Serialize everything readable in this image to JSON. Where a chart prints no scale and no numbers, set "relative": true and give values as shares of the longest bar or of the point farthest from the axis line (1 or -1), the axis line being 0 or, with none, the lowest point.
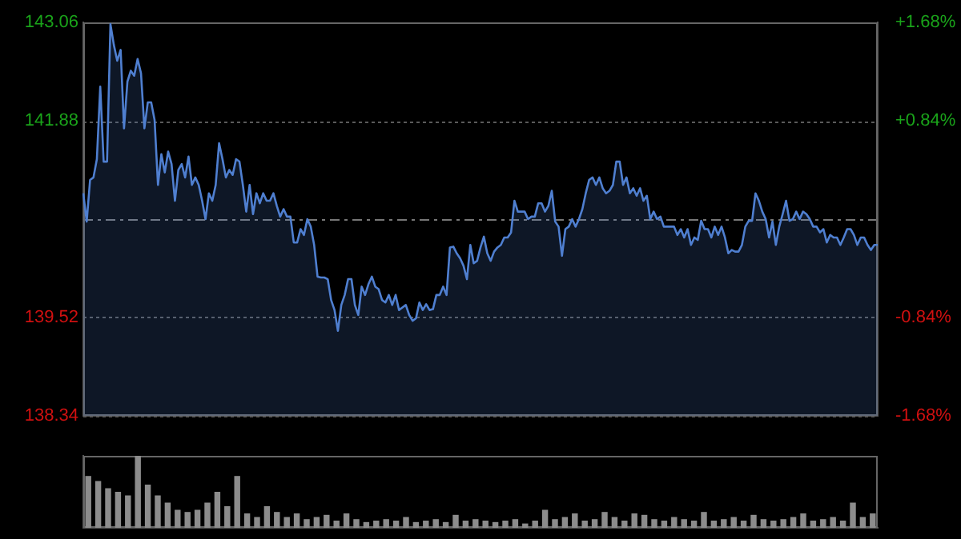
{
  "chart_data": [
    {
      "type": "area",
      "tick_labels": "y",
      "grid": "y",
      "legend": false,
      "categories": [
        null,
        null,
        null,
        null,
        null,
        null,
        null,
        null,
        null,
        null,
        null,
        null,
        null,
        null,
        null,
        null,
        null,
        null,
        null,
        null,
        null,
        null,
        null,
        null,
        null,
        null,
        null,
        null,
        null,
        null,
        null,
        null,
        null,
        null,
        null,
        null,
        null,
        null,
        null,
        null,
        null,
        null,
        null,
        null,
        null,
        null,
        null,
        null,
        null,
        null,
        null,
        null,
        null,
        null,
        null,
        null,
        null,
        null,
        null,
        null,
        null,
        null,
        null,
        null,
        null,
        null,
        null,
        null,
        null,
        null,
        null,
        null,
        null,
        null,
        null,
        null,
        null,
        null,
        null,
        null,
        null,
        null,
        null,
        null,
        null,
        null,
        null,
        null,
        null,
        null,
        null,
        null,
        null,
        null,
        null,
        null,
        null,
        null,
        null,
        null,
        null,
        null,
        null,
        null,
        null,
        null,
        null,
        null,
        null,
        null,
        null,
        null,
        null,
        null,
        null,
        null,
        null,
        null,
        null,
        null,
        null,
        null,
        null,
        null,
        null,
        null,
        null,
        null,
        null,
        null,
        null,
        null,
        null,
        null,
        null,
        null,
        null,
        null,
        null,
        null,
        null,
        null,
        null,
        null,
        null,
        null,
        null,
        null,
        null,
        null,
        null,
        null,
        null,
        null,
        null,
        null,
        null,
        null,
        null,
        null,
        null,
        null,
        null,
        null,
        null,
        null,
        null,
        null,
        null,
        null,
        null,
        null,
        null,
        null,
        null,
        null,
        null,
        null,
        null,
        null,
        null,
        null,
        null,
        null,
        null,
        null,
        null,
        null,
        null,
        null,
        null,
        null,
        null,
        null,
        null,
        null,
        null,
        null,
        null,
        null,
        null,
        null,
        null,
        null,
        null,
        null,
        null,
        null,
        null,
        null,
        null,
        null,
        null,
        null,
        null,
        null,
        null,
        null,
        null,
        null,
        null,
        null,
        null,
        null,
        null,
        null,
        null,
        null,
        null,
        null,
        null,
        null,
        null,
        null,
        null
      ],
      "series": [
        {
          "color": "#4f7fd0",
          "values": [
            141.01,
            140.67,
            141.17,
            141.2,
            141.42,
            142.29,
            141.39,
            141.39,
            143.04,
            142.79,
            142.6,
            142.73,
            141.79,
            142.35,
            142.48,
            142.42,
            142.62,
            142.45,
            141.79,
            142.1,
            142.1,
            141.89,
            141.11,
            141.48,
            141.26,
            141.51,
            141.36,
            140.92,
            141.29,
            141.36,
            141.2,
            141.45,
            141.11,
            141.2,
            141.11,
            140.92,
            140.7,
            141.01,
            140.92,
            141.11,
            141.61,
            141.42,
            141.2,
            141.29,
            141.23,
            141.42,
            141.39,
            141.11,
            140.79,
            141.11,
            140.76,
            141.01,
            140.89,
            141.01,
            140.92,
            140.92,
            141.01,
            140.86,
            140.73,
            140.82,
            140.73,
            140.73,
            140.42,
            140.42,
            140.58,
            140.51,
            140.7,
            140.61,
            140.39,
            140.01,
            140.0,
            140.0,
            139.98,
            139.73,
            139.61,
            139.36,
            139.67,
            139.79,
            139.98,
            139.98,
            139.67,
            139.55,
            139.89,
            139.79,
            139.92,
            140.01,
            139.89,
            139.86,
            139.73,
            139.7,
            139.79,
            139.67,
            139.79,
            139.61,
            139.64,
            139.67,
            139.55,
            139.48,
            139.51,
            139.7,
            139.61,
            139.68,
            139.61,
            139.62,
            139.79,
            139.79,
            139.89,
            139.79,
            140.36,
            140.37,
            140.29,
            140.23,
            140.14,
            139.98,
            140.39,
            140.17,
            140.2,
            140.36,
            140.49,
            140.29,
            140.2,
            140.31,
            140.36,
            140.39,
            140.48,
            140.48,
            140.54,
            140.92,
            140.79,
            140.79,
            140.79,
            140.7,
            140.73,
            140.73,
            140.89,
            140.89,
            140.79,
            140.86,
            141.04,
            140.67,
            140.61,
            140.26,
            140.58,
            140.61,
            140.7,
            140.61,
            140.7,
            140.82,
            141.01,
            141.17,
            141.2,
            141.11,
            141.2,
            141.07,
            141.01,
            141.04,
            141.11,
            141.39,
            141.39,
            141.11,
            141.2,
            141.01,
            141.07,
            140.98,
            141.07,
            140.92,
            140.98,
            140.7,
            140.79,
            140.7,
            140.73,
            140.61,
            140.61,
            140.61,
            140.61,
            140.51,
            140.58,
            140.48,
            140.58,
            140.39,
            140.48,
            140.45,
            140.68,
            140.58,
            140.58,
            140.48,
            140.61,
            140.51,
            140.61,
            140.48,
            140.29,
            140.33,
            140.31,
            140.31,
            140.39,
            140.61,
            140.68,
            140.68,
            141.01,
            140.92,
            140.79,
            140.7,
            140.48,
            140.67,
            140.39,
            140.61,
            140.76,
            140.92,
            140.68,
            140.7,
            140.79,
            140.7,
            140.79,
            140.76,
            140.7,
            140.61,
            140.61,
            140.54,
            140.58,
            140.42,
            140.51,
            140.48,
            140.48,
            140.39,
            140.48,
            140.58,
            140.58,
            140.51,
            140.39,
            140.48,
            140.48,
            140.39,
            140.33,
            140.39,
            140.39
          ]
        }
      ],
      "ylim": [
        138.34,
        143.06
      ],
      "yticks": [
        138.34,
        139.52,
        141.88,
        143.06
      ],
      "y2lim": [
        -1.68,
        1.68
      ],
      "y2ticks": [
        {
          "value": -1.68,
          "label": "-1.68%"
        },
        {
          "value": -0.84,
          "label": "-0.84%"
        },
        {
          "value": 0.84,
          "label": "+0.84%"
        },
        {
          "value": 1.68,
          "label": "+1.68%"
        }
      ],
      "ref_lines": [
        {
          "axis": "y",
          "value": 140.7,
          "label": null
        }
      ]
    },
    {
      "type": "bar",
      "relative": true,
      "tick_labels": false,
      "legend": false,
      "categories": [
        null,
        null,
        null,
        null,
        null,
        null,
        null,
        null,
        null,
        null,
        null,
        null,
        null,
        null,
        null,
        null,
        null,
        null,
        null,
        null,
        null,
        null,
        null,
        null,
        null,
        null,
        null,
        null,
        null,
        null,
        null,
        null,
        null,
        null,
        null,
        null,
        null,
        null,
        null,
        null,
        null,
        null,
        null,
        null,
        null,
        null,
        null,
        null,
        null,
        null,
        null,
        null,
        null,
        null,
        null,
        null,
        null,
        null,
        null,
        null,
        null,
        null,
        null,
        null,
        null,
        null,
        null,
        null,
        null,
        null,
        null,
        null,
        null,
        null,
        null,
        null,
        null,
        null,
        null,
        null
      ],
      "series": [
        {
          "color": "#8c8c8c",
          "values": [
            0.72,
            0.65,
            0.55,
            0.5,
            0.45,
            1,
            0.6,
            0.45,
            0.35,
            0.25,
            0.22,
            0.25,
            0.35,
            0.5,
            0.3,
            0.72,
            0.2,
            0.15,
            0.3,
            0.22,
            0.15,
            0.2,
            0.12,
            0.15,
            0.18,
            0.1,
            0.2,
            0.12,
            0.08,
            0.1,
            0.12,
            0.1,
            0.15,
            0.08,
            0.1,
            0.12,
            0.08,
            0.18,
            0.1,
            0.12,
            0.1,
            0.08,
            0.1,
            0.12,
            0.06,
            0.1,
            0.25,
            0.12,
            0.15,
            0.2,
            0.1,
            0.12,
            0.22,
            0.15,
            0.1,
            0.2,
            0.18,
            0.12,
            0.1,
            0.15,
            0.12,
            0.1,
            0.22,
            0.1,
            0.12,
            0.15,
            0.1,
            0.18,
            0.12,
            0.1,
            0.12,
            0.15,
            0.2,
            0.1,
            0.12,
            0.15,
            0.1,
            0.35,
            0.15,
            0.2
          ]
        }
      ]
    }
  ]
}
